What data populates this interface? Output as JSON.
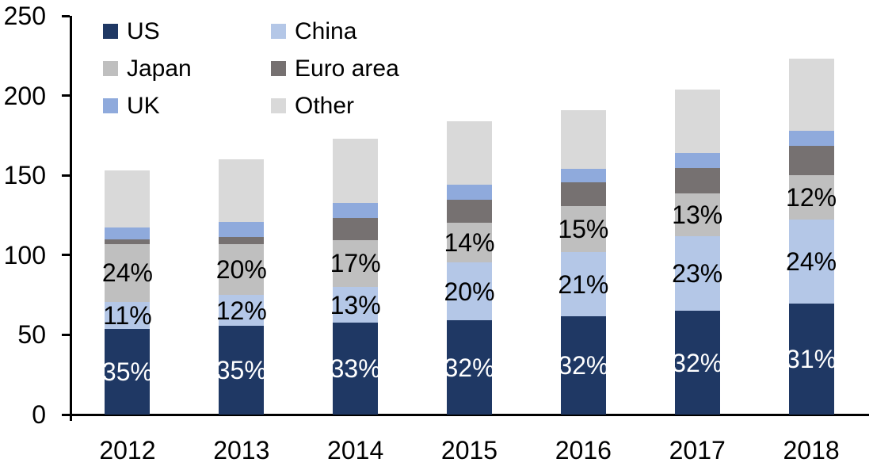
{
  "chart_data": {
    "type": "bar",
    "stacked": true,
    "title": "",
    "xlabel": "",
    "ylabel": "",
    "ylim": [
      0,
      250
    ],
    "yticks": [
      0,
      50,
      100,
      150,
      200,
      250
    ],
    "grid": false,
    "legend_position": "top-left",
    "legend_columns": 2,
    "categories": [
      "2012",
      "2013",
      "2014",
      "2015",
      "2016",
      "2017",
      "2018"
    ],
    "totals": [
      153,
      160,
      173,
      184,
      191,
      204,
      223
    ],
    "series": [
      {
        "name": "US",
        "color": "#1F3864",
        "values": [
          53.5,
          55.5,
          57.5,
          59,
          61.5,
          65,
          69.5
        ],
        "labels": [
          "35%",
          "35%",
          "33%",
          "32%",
          "32%",
          "32%",
          "31%"
        ],
        "label_color": "#FFFFFF"
      },
      {
        "name": "China",
        "color": "#B4C7E7",
        "values": [
          17,
          19.5,
          22.5,
          36.5,
          40.5,
          47,
          53
        ],
        "labels": [
          "11%",
          "12%",
          "13%",
          "20%",
          "21%",
          "23%",
          "24%"
        ],
        "label_color": "#000000"
      },
      {
        "name": "Japan",
        "color": "#BFBFBF",
        "values": [
          36.5,
          32,
          29.5,
          25,
          28.5,
          26.5,
          27.5
        ],
        "labels": [
          "24%",
          "20%",
          "17%",
          "14%",
          "15%",
          "13%",
          "12%"
        ],
        "label_color": "#000000"
      },
      {
        "name": "Euro area",
        "color": "#767171",
        "values": [
          3,
          4.5,
          14,
          14,
          15,
          16,
          18.5
        ],
        "labels": null,
        "label_color": null
      },
      {
        "name": "UK",
        "color": "#8FAADC",
        "values": [
          7.5,
          9.5,
          9,
          9.5,
          8.5,
          9.5,
          9.5
        ],
        "labels": null,
        "label_color": null
      },
      {
        "name": "Other",
        "color": "#D9D9D9",
        "values": [
          35.5,
          39,
          40.5,
          40,
          37,
          40,
          45
        ],
        "labels": null,
        "label_color": null
      }
    ],
    "axis_color": "#000000",
    "text_color": "#000000"
  }
}
